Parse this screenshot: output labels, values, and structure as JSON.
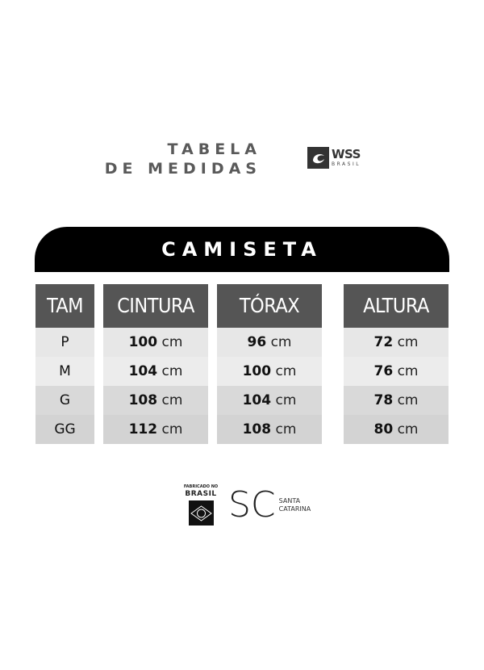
{
  "header": {
    "title_line1": "TABELA",
    "title_line2": "DE MEDIDAS",
    "brand": {
      "name": "WSS",
      "sub": "BRASIL",
      "icon": "wave-icon"
    }
  },
  "banner": {
    "label": "CAMISETA"
  },
  "table": {
    "columns": [
      "TAM",
      "CINTURA",
      "TÓRAX",
      "ALTURA"
    ],
    "unit": "cm",
    "rows": [
      {
        "size": "P",
        "cintura": "100",
        "torax": "96",
        "altura": "72"
      },
      {
        "size": "M",
        "cintura": "104",
        "torax": "100",
        "altura": "76"
      },
      {
        "size": "G",
        "cintura": "108",
        "torax": "104",
        "altura": "78"
      },
      {
        "size": "GG",
        "cintura": "112",
        "torax": "108",
        "altura": "80"
      }
    ]
  },
  "footer": {
    "fabricado": {
      "line1": "FABRICADO NO",
      "line2": "BRASIL",
      "icon": "brazil-flag-icon"
    },
    "sc": {
      "mark": "SC",
      "line1": "SANTA",
      "line2": "CATARINA"
    }
  },
  "colors": {
    "header_bg": "#555555",
    "banner_bg": "#000000",
    "title": "#5a5a5a"
  }
}
